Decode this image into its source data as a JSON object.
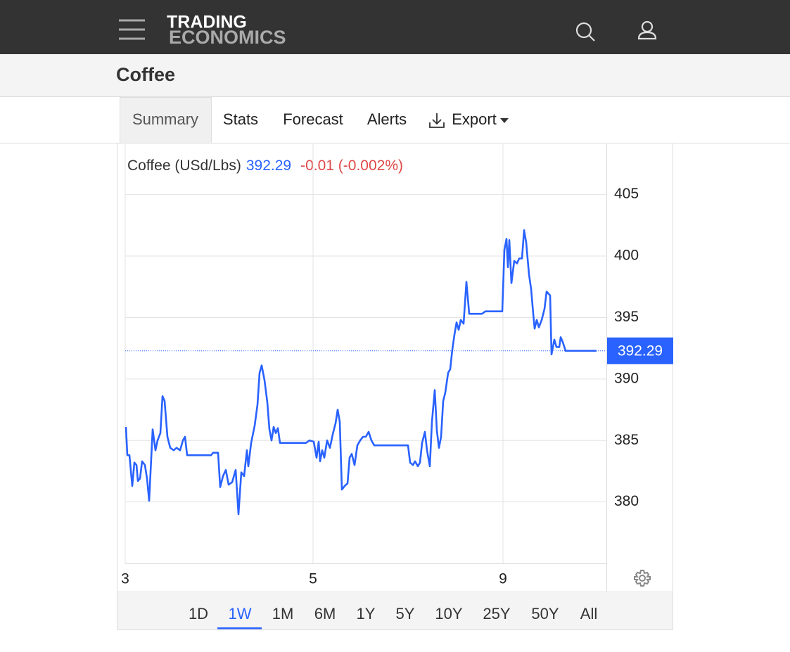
{
  "nav": {
    "logo_top": "TRADING",
    "logo_bottom": "ECONOMICS"
  },
  "page_title": "Coffee",
  "tabs": [
    "Summary",
    "Stats",
    "Forecast",
    "Alerts",
    "Export"
  ],
  "selected_tab": 0,
  "ranges": [
    "1D",
    "1W",
    "1M",
    "6M",
    "1Y",
    "5Y",
    "10Y",
    "25Y",
    "50Y",
    "All"
  ],
  "selected_range": 1,
  "chart_data": {
    "type": "line",
    "series": [
      {
        "name": "Coffee (USd/Lbs)",
        "color": "#2962ff",
        "x": [
          1,
          3,
          6,
          10,
          13,
          16,
          18,
          21,
          24,
          28,
          31,
          34,
          39,
          43,
          46,
          50,
          53,
          56,
          60,
          64,
          69,
          73,
          78,
          82,
          85,
          88,
          122,
          125,
          132,
          135,
          139,
          143,
          147,
          152,
          157,
          161,
          165,
          169,
          173,
          175,
          179,
          184,
          188,
          191,
          194,
          198,
          202,
          205,
          208,
          211,
          214,
          217,
          220,
          257,
          262,
          268,
          272,
          275,
          277,
          280,
          283,
          287,
          291,
          295,
          299,
          302,
          305,
          308,
          312,
          316,
          319,
          322,
          326,
          330,
          334,
          338,
          342,
          346,
          350,
          354,
          402,
          405,
          409,
          412,
          416,
          419,
          422,
          426,
          429,
          433,
          436,
          440,
          443,
          446,
          449,
          452,
          455,
          459,
          462,
          465,
          468,
          471,
          474,
          477,
          481,
          485,
          489,
          507,
          512,
          536,
          539,
          542,
          544,
          546,
          549,
          553,
          557,
          560,
          564,
          567,
          570,
          574,
          577,
          580,
          582,
          585,
          588,
          592,
          596,
          599,
          604,
          606,
          610,
          613,
          617,
          619,
          622,
          626,
          670
        ],
        "values": [
          386.1,
          383.8,
          383.8,
          381.3,
          383.2,
          383.0,
          381.7,
          381.9,
          383.3,
          383.0,
          381.9,
          380.1,
          385.9,
          384.2,
          385.0,
          385.6,
          388.6,
          388.2,
          385.3,
          384.4,
          384.2,
          384.4,
          384.2,
          385.0,
          385.3,
          383.8,
          383.8,
          384.0,
          384.0,
          381.2,
          382.1,
          382.6,
          381.4,
          381.6,
          382.6,
          379.0,
          382.4,
          382.1,
          384.2,
          382.9,
          384.8,
          386.2,
          387.9,
          390.5,
          391.1,
          389.9,
          388.1,
          385.9,
          385.0,
          386.1,
          385.6,
          386.0,
          384.8,
          384.8,
          385.0,
          384.9,
          383.6,
          384.9,
          383.3,
          384.2,
          383.6,
          385.0,
          384.4,
          385.5,
          386.4,
          387.5,
          386.5,
          381.0,
          381.3,
          381.5,
          383.6,
          383.9,
          383.0,
          384.6,
          385.0,
          385.3,
          385.3,
          385.7,
          385.0,
          384.6,
          384.6,
          383.2,
          383.0,
          383.3,
          382.9,
          383.2,
          384.8,
          385.7,
          384.2,
          382.9,
          386.5,
          389.1,
          385.8,
          384.4,
          385.3,
          388.2,
          388.9,
          390.5,
          390.8,
          392.4,
          393.6,
          394.6,
          394.0,
          394.8,
          394.5,
          397.9,
          395.3,
          395.3,
          395.5,
          395.5,
          400.5,
          401.4,
          399.1,
          401.3,
          397.8,
          399.6,
          399.4,
          399.8,
          399.8,
          402.1,
          401.1,
          398.5,
          397.3,
          395.3,
          394.1,
          394.8,
          394.2,
          394.8,
          395.7,
          397.1,
          396.8,
          392.0,
          393.2,
          392.6,
          392.6,
          393.4,
          393.0,
          392.29,
          392.29
        ]
      }
    ],
    "last_value": 392.29,
    "change": "-0.01 (-0.002%)",
    "change_color": "#e04848",
    "xlim": [
      0,
      684
    ],
    "xticks": [
      {
        "value": 0,
        "label": "3"
      },
      {
        "value": 267,
        "label": "5"
      },
      {
        "value": 537,
        "label": "9"
      }
    ],
    "ylim": [
      375,
      409.1
    ],
    "yticks": [
      380,
      385,
      390,
      395,
      400,
      405
    ],
    "grid": true
  }
}
